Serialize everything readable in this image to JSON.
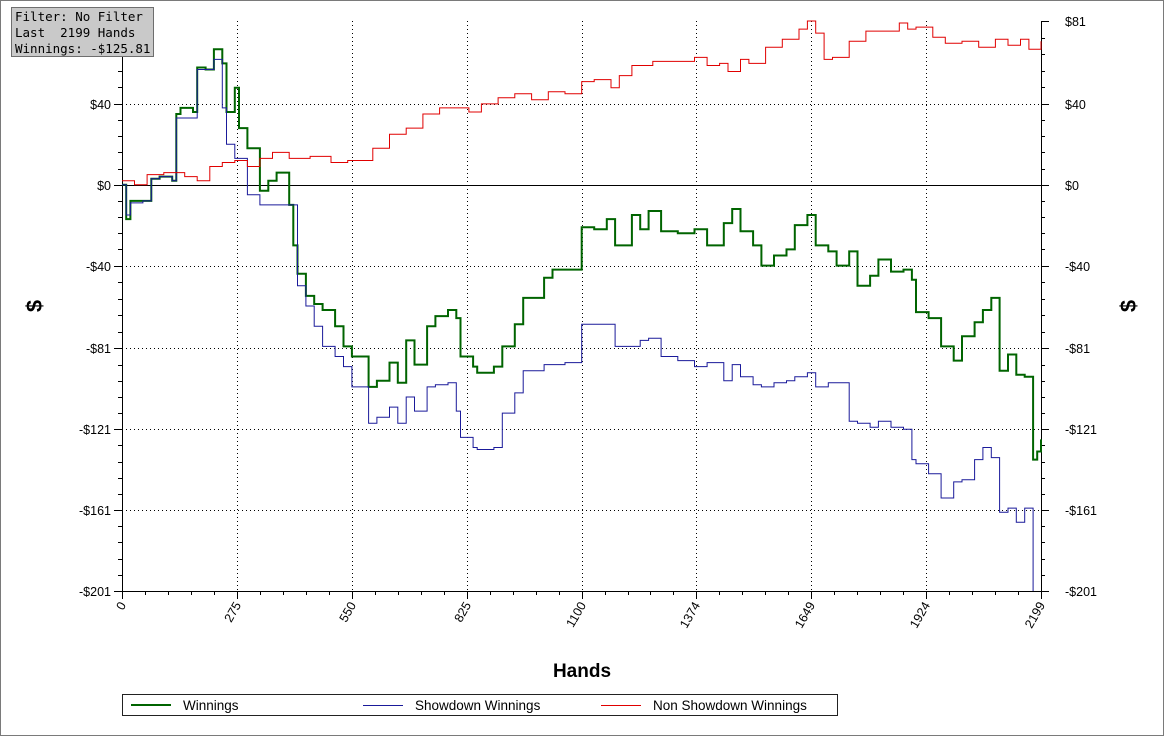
{
  "filter_box": {
    "line1": "Filter: No Filter",
    "line2": "Last  2199 Hands",
    "line3": "Winnings: -$125.81"
  },
  "chart_data": {
    "type": "line",
    "title": "",
    "xlabel": "Hands",
    "ylabel": "$",
    "xlim": [
      0,
      2199
    ],
    "ylim": [
      -201,
      81
    ],
    "x_ticks": [
      0,
      275,
      550,
      825,
      1100,
      1374,
      1649,
      1924,
      2199
    ],
    "y_ticks": [
      81,
      40,
      0,
      -40,
      -81,
      -121,
      -161,
      -201
    ],
    "y_tick_labels": [
      "$81",
      "$40",
      "$0",
      "-$40",
      "-$81",
      "-$121",
      "-$161",
      "-$201"
    ],
    "grid": true,
    "legend_position": "bottom",
    "series": [
      {
        "name": "Winnings",
        "color": "#006400",
        "points": [
          [
            0,
            0
          ],
          [
            10,
            -17
          ],
          [
            20,
            -8
          ],
          [
            50,
            -8
          ],
          [
            70,
            3
          ],
          [
            90,
            4
          ],
          [
            120,
            2
          ],
          [
            130,
            35
          ],
          [
            140,
            38
          ],
          [
            170,
            36
          ],
          [
            180,
            58
          ],
          [
            190,
            58
          ],
          [
            200,
            57
          ],
          [
            220,
            67
          ],
          [
            240,
            60
          ],
          [
            250,
            36
          ],
          [
            270,
            48
          ],
          [
            280,
            28
          ],
          [
            300,
            18
          ],
          [
            330,
            -3
          ],
          [
            350,
            2
          ],
          [
            370,
            6
          ],
          [
            400,
            -10
          ],
          [
            410,
            -30
          ],
          [
            420,
            -44
          ],
          [
            440,
            -55
          ],
          [
            460,
            -59
          ],
          [
            480,
            -62
          ],
          [
            510,
            -70
          ],
          [
            530,
            -80
          ],
          [
            550,
            -85
          ],
          [
            590,
            -100
          ],
          [
            610,
            -97
          ],
          [
            640,
            -88
          ],
          [
            660,
            -98
          ],
          [
            680,
            -77
          ],
          [
            700,
            -89
          ],
          [
            730,
            -70
          ],
          [
            750,
            -65
          ],
          [
            780,
            -62
          ],
          [
            800,
            -66
          ],
          [
            810,
            -85
          ],
          [
            840,
            -90
          ],
          [
            850,
            -93
          ],
          [
            890,
            -90
          ],
          [
            910,
            -80
          ],
          [
            940,
            -69
          ],
          [
            960,
            -56
          ],
          [
            1010,
            -46
          ],
          [
            1030,
            -42
          ],
          [
            1060,
            -42
          ],
          [
            1100,
            -21
          ],
          [
            1130,
            -22
          ],
          [
            1160,
            -17
          ],
          [
            1180,
            -30
          ],
          [
            1220,
            -15
          ],
          [
            1240,
            -22
          ],
          [
            1260,
            -13
          ],
          [
            1290,
            -23
          ],
          [
            1330,
            -24
          ],
          [
            1370,
            -22
          ],
          [
            1400,
            -30
          ],
          [
            1440,
            -19
          ],
          [
            1460,
            -12
          ],
          [
            1480,
            -23
          ],
          [
            1510,
            -30
          ],
          [
            1530,
            -40
          ],
          [
            1560,
            -35
          ],
          [
            1590,
            -32
          ],
          [
            1610,
            -20
          ],
          [
            1640,
            -15
          ],
          [
            1660,
            -30
          ],
          [
            1690,
            -33
          ],
          [
            1710,
            -40
          ],
          [
            1740,
            -33
          ],
          [
            1760,
            -50
          ],
          [
            1790,
            -45
          ],
          [
            1810,
            -37
          ],
          [
            1840,
            -43
          ],
          [
            1870,
            -42
          ],
          [
            1890,
            -47
          ],
          [
            1900,
            -63
          ],
          [
            1930,
            -66
          ],
          [
            1960,
            -80
          ],
          [
            1990,
            -87
          ],
          [
            2010,
            -75
          ],
          [
            2040,
            -68
          ],
          [
            2060,
            -62
          ],
          [
            2080,
            -56
          ],
          [
            2100,
            -92
          ],
          [
            2120,
            -84
          ],
          [
            2140,
            -94
          ],
          [
            2160,
            -95
          ],
          [
            2180,
            -136
          ],
          [
            2190,
            -132
          ],
          [
            2199,
            -126
          ]
        ]
      },
      {
        "name": "Showdown Winnings",
        "color": "#1a1a9a",
        "points": [
          [
            0,
            0
          ],
          [
            10,
            -15
          ],
          [
            20,
            -9
          ],
          [
            50,
            -8
          ],
          [
            70,
            3
          ],
          [
            90,
            4
          ],
          [
            120,
            2
          ],
          [
            130,
            33
          ],
          [
            170,
            33
          ],
          [
            180,
            57
          ],
          [
            220,
            62
          ],
          [
            240,
            38
          ],
          [
            250,
            20
          ],
          [
            270,
            13
          ],
          [
            300,
            -5
          ],
          [
            330,
            -10
          ],
          [
            400,
            -10
          ],
          [
            420,
            -50
          ],
          [
            440,
            -60
          ],
          [
            460,
            -70
          ],
          [
            480,
            -80
          ],
          [
            510,
            -85
          ],
          [
            530,
            -90
          ],
          [
            550,
            -100
          ],
          [
            590,
            -118
          ],
          [
            610,
            -115
          ],
          [
            640,
            -110
          ],
          [
            660,
            -118
          ],
          [
            680,
            -105
          ],
          [
            700,
            -112
          ],
          [
            730,
            -100
          ],
          [
            750,
            -99
          ],
          [
            780,
            -98
          ],
          [
            800,
            -112
          ],
          [
            810,
            -125
          ],
          [
            840,
            -130
          ],
          [
            850,
            -131
          ],
          [
            890,
            -130
          ],
          [
            910,
            -113
          ],
          [
            940,
            -103
          ],
          [
            960,
            -92
          ],
          [
            1010,
            -89
          ],
          [
            1060,
            -88
          ],
          [
            1100,
            -69
          ],
          [
            1130,
            -69
          ],
          [
            1160,
            -69
          ],
          [
            1180,
            -80
          ],
          [
            1220,
            -80
          ],
          [
            1240,
            -77
          ],
          [
            1260,
            -76
          ],
          [
            1290,
            -85
          ],
          [
            1330,
            -87
          ],
          [
            1370,
            -90
          ],
          [
            1400,
            -88
          ],
          [
            1440,
            -97
          ],
          [
            1460,
            -89
          ],
          [
            1480,
            -95
          ],
          [
            1510,
            -99
          ],
          [
            1530,
            -100
          ],
          [
            1560,
            -98
          ],
          [
            1590,
            -97
          ],
          [
            1610,
            -95
          ],
          [
            1640,
            -93
          ],
          [
            1660,
            -100
          ],
          [
            1690,
            -98
          ],
          [
            1710,
            -98
          ],
          [
            1740,
            -117
          ],
          [
            1760,
            -118
          ],
          [
            1790,
            -120
          ],
          [
            1810,
            -117
          ],
          [
            1840,
            -120
          ],
          [
            1870,
            -121
          ],
          [
            1890,
            -136
          ],
          [
            1900,
            -138
          ],
          [
            1930,
            -143
          ],
          [
            1960,
            -155
          ],
          [
            1990,
            -147
          ],
          [
            2010,
            -146
          ],
          [
            2040,
            -136
          ],
          [
            2060,
            -130
          ],
          [
            2080,
            -135
          ],
          [
            2100,
            -162
          ],
          [
            2120,
            -160
          ],
          [
            2140,
            -167
          ],
          [
            2160,
            -160
          ],
          [
            2180,
            -201
          ]
        ]
      },
      {
        "name": "Non Showdown Winnings",
        "color": "#e00000",
        "points": [
          [
            0,
            2
          ],
          [
            30,
            0
          ],
          [
            60,
            5
          ],
          [
            100,
            6
          ],
          [
            150,
            4
          ],
          [
            180,
            2
          ],
          [
            210,
            9
          ],
          [
            240,
            11
          ],
          [
            270,
            12
          ],
          [
            300,
            9
          ],
          [
            330,
            13
          ],
          [
            360,
            16
          ],
          [
            400,
            13
          ],
          [
            450,
            14
          ],
          [
            500,
            11
          ],
          [
            540,
            12
          ],
          [
            600,
            18
          ],
          [
            640,
            25
          ],
          [
            680,
            28
          ],
          [
            720,
            35
          ],
          [
            760,
            38
          ],
          [
            800,
            38
          ],
          [
            830,
            36
          ],
          [
            860,
            40
          ],
          [
            900,
            43
          ],
          [
            940,
            45
          ],
          [
            980,
            42
          ],
          [
            1020,
            46
          ],
          [
            1060,
            45
          ],
          [
            1100,
            51
          ],
          [
            1130,
            52
          ],
          [
            1170,
            48
          ],
          [
            1190,
            54
          ],
          [
            1220,
            59
          ],
          [
            1270,
            61
          ],
          [
            1300,
            61
          ],
          [
            1330,
            61
          ],
          [
            1370,
            63
          ],
          [
            1400,
            59
          ],
          [
            1430,
            60
          ],
          [
            1450,
            56
          ],
          [
            1480,
            62
          ],
          [
            1500,
            60
          ],
          [
            1540,
            68
          ],
          [
            1580,
            72
          ],
          [
            1620,
            77
          ],
          [
            1640,
            81
          ],
          [
            1660,
            75
          ],
          [
            1680,
            62
          ],
          [
            1700,
            63
          ],
          [
            1740,
            71
          ],
          [
            1780,
            76
          ],
          [
            1820,
            76
          ],
          [
            1860,
            80
          ],
          [
            1880,
            77
          ],
          [
            1900,
            78
          ],
          [
            1940,
            73
          ],
          [
            1970,
            70
          ],
          [
            2010,
            71
          ],
          [
            2050,
            68
          ],
          [
            2090,
            72
          ],
          [
            2120,
            69
          ],
          [
            2150,
            72
          ],
          [
            2170,
            67
          ],
          [
            2199,
            71
          ]
        ]
      }
    ]
  }
}
